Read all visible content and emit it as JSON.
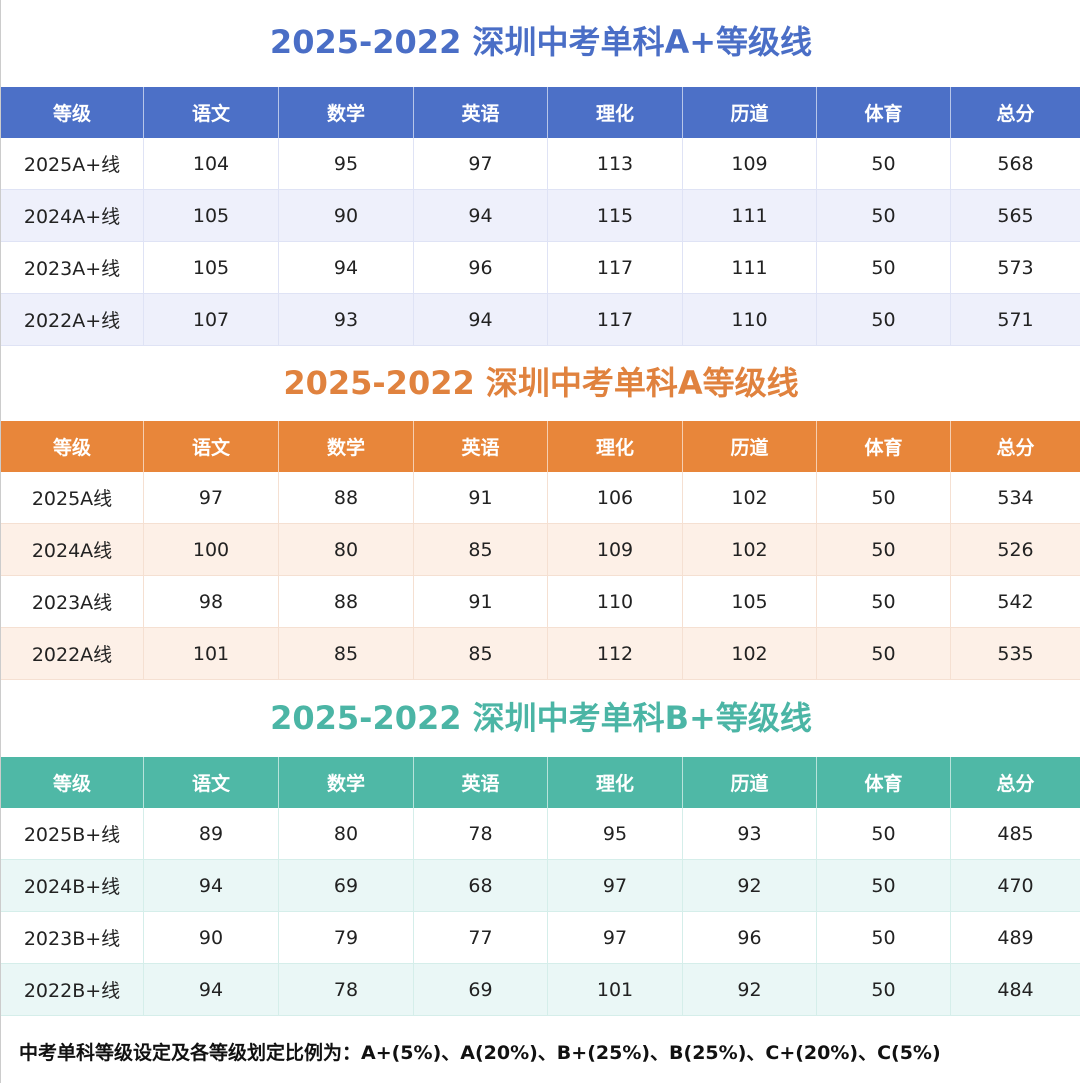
{
  "tables": [
    {
      "title": "2025-2022 深圳中考单科A+等级线",
      "header": [
        "等级",
        "语文",
        "数学",
        "英语",
        "理化",
        "历道",
        "体育",
        "总分"
      ],
      "rows": [
        [
          "2025A+线",
          104,
          95,
          97,
          113,
          109,
          50,
          568
        ],
        [
          "2024A+线",
          105,
          90,
          94,
          115,
          111,
          50,
          565
        ],
        [
          "2023A+线",
          105,
          94,
          96,
          117,
          111,
          50,
          573
        ],
        [
          "2022A+线",
          107,
          93,
          94,
          117,
          110,
          50,
          571
        ]
      ]
    },
    {
      "title": "2025-2022 深圳中考单科A等级线",
      "header": [
        "等级",
        "语文",
        "数学",
        "英语",
        "理化",
        "历道",
        "体育",
        "总分"
      ],
      "rows": [
        [
          "2025A线",
          97,
          88,
          91,
          106,
          102,
          50,
          534
        ],
        [
          "2024A线",
          100,
          80,
          85,
          109,
          102,
          50,
          526
        ],
        [
          "2023A线",
          98,
          88,
          91,
          110,
          105,
          50,
          542
        ],
        [
          "2022A线",
          101,
          85,
          85,
          112,
          102,
          50,
          535
        ]
      ]
    },
    {
      "title": "2025-2022 深圳中考单科B+等级线",
      "header": [
        "等级",
        "语文",
        "数学",
        "英语",
        "理化",
        "历道",
        "体育",
        "总分"
      ],
      "rows": [
        [
          "2025B+线",
          89,
          80,
          78,
          95,
          93,
          50,
          485
        ],
        [
          "2024B+线",
          94,
          69,
          68,
          97,
          92,
          50,
          470
        ],
        [
          "2023B+线",
          90,
          79,
          77,
          97,
          96,
          50,
          489
        ],
        [
          "2022B+线",
          94,
          78,
          69,
          101,
          92,
          50,
          484
        ]
      ]
    }
  ],
  "footer": "中考单科等级设定及各等级划定比例为：A+(5%)、A(20%)、B+(25%)、B(25%)、C+(20%)、C(5%)"
}
